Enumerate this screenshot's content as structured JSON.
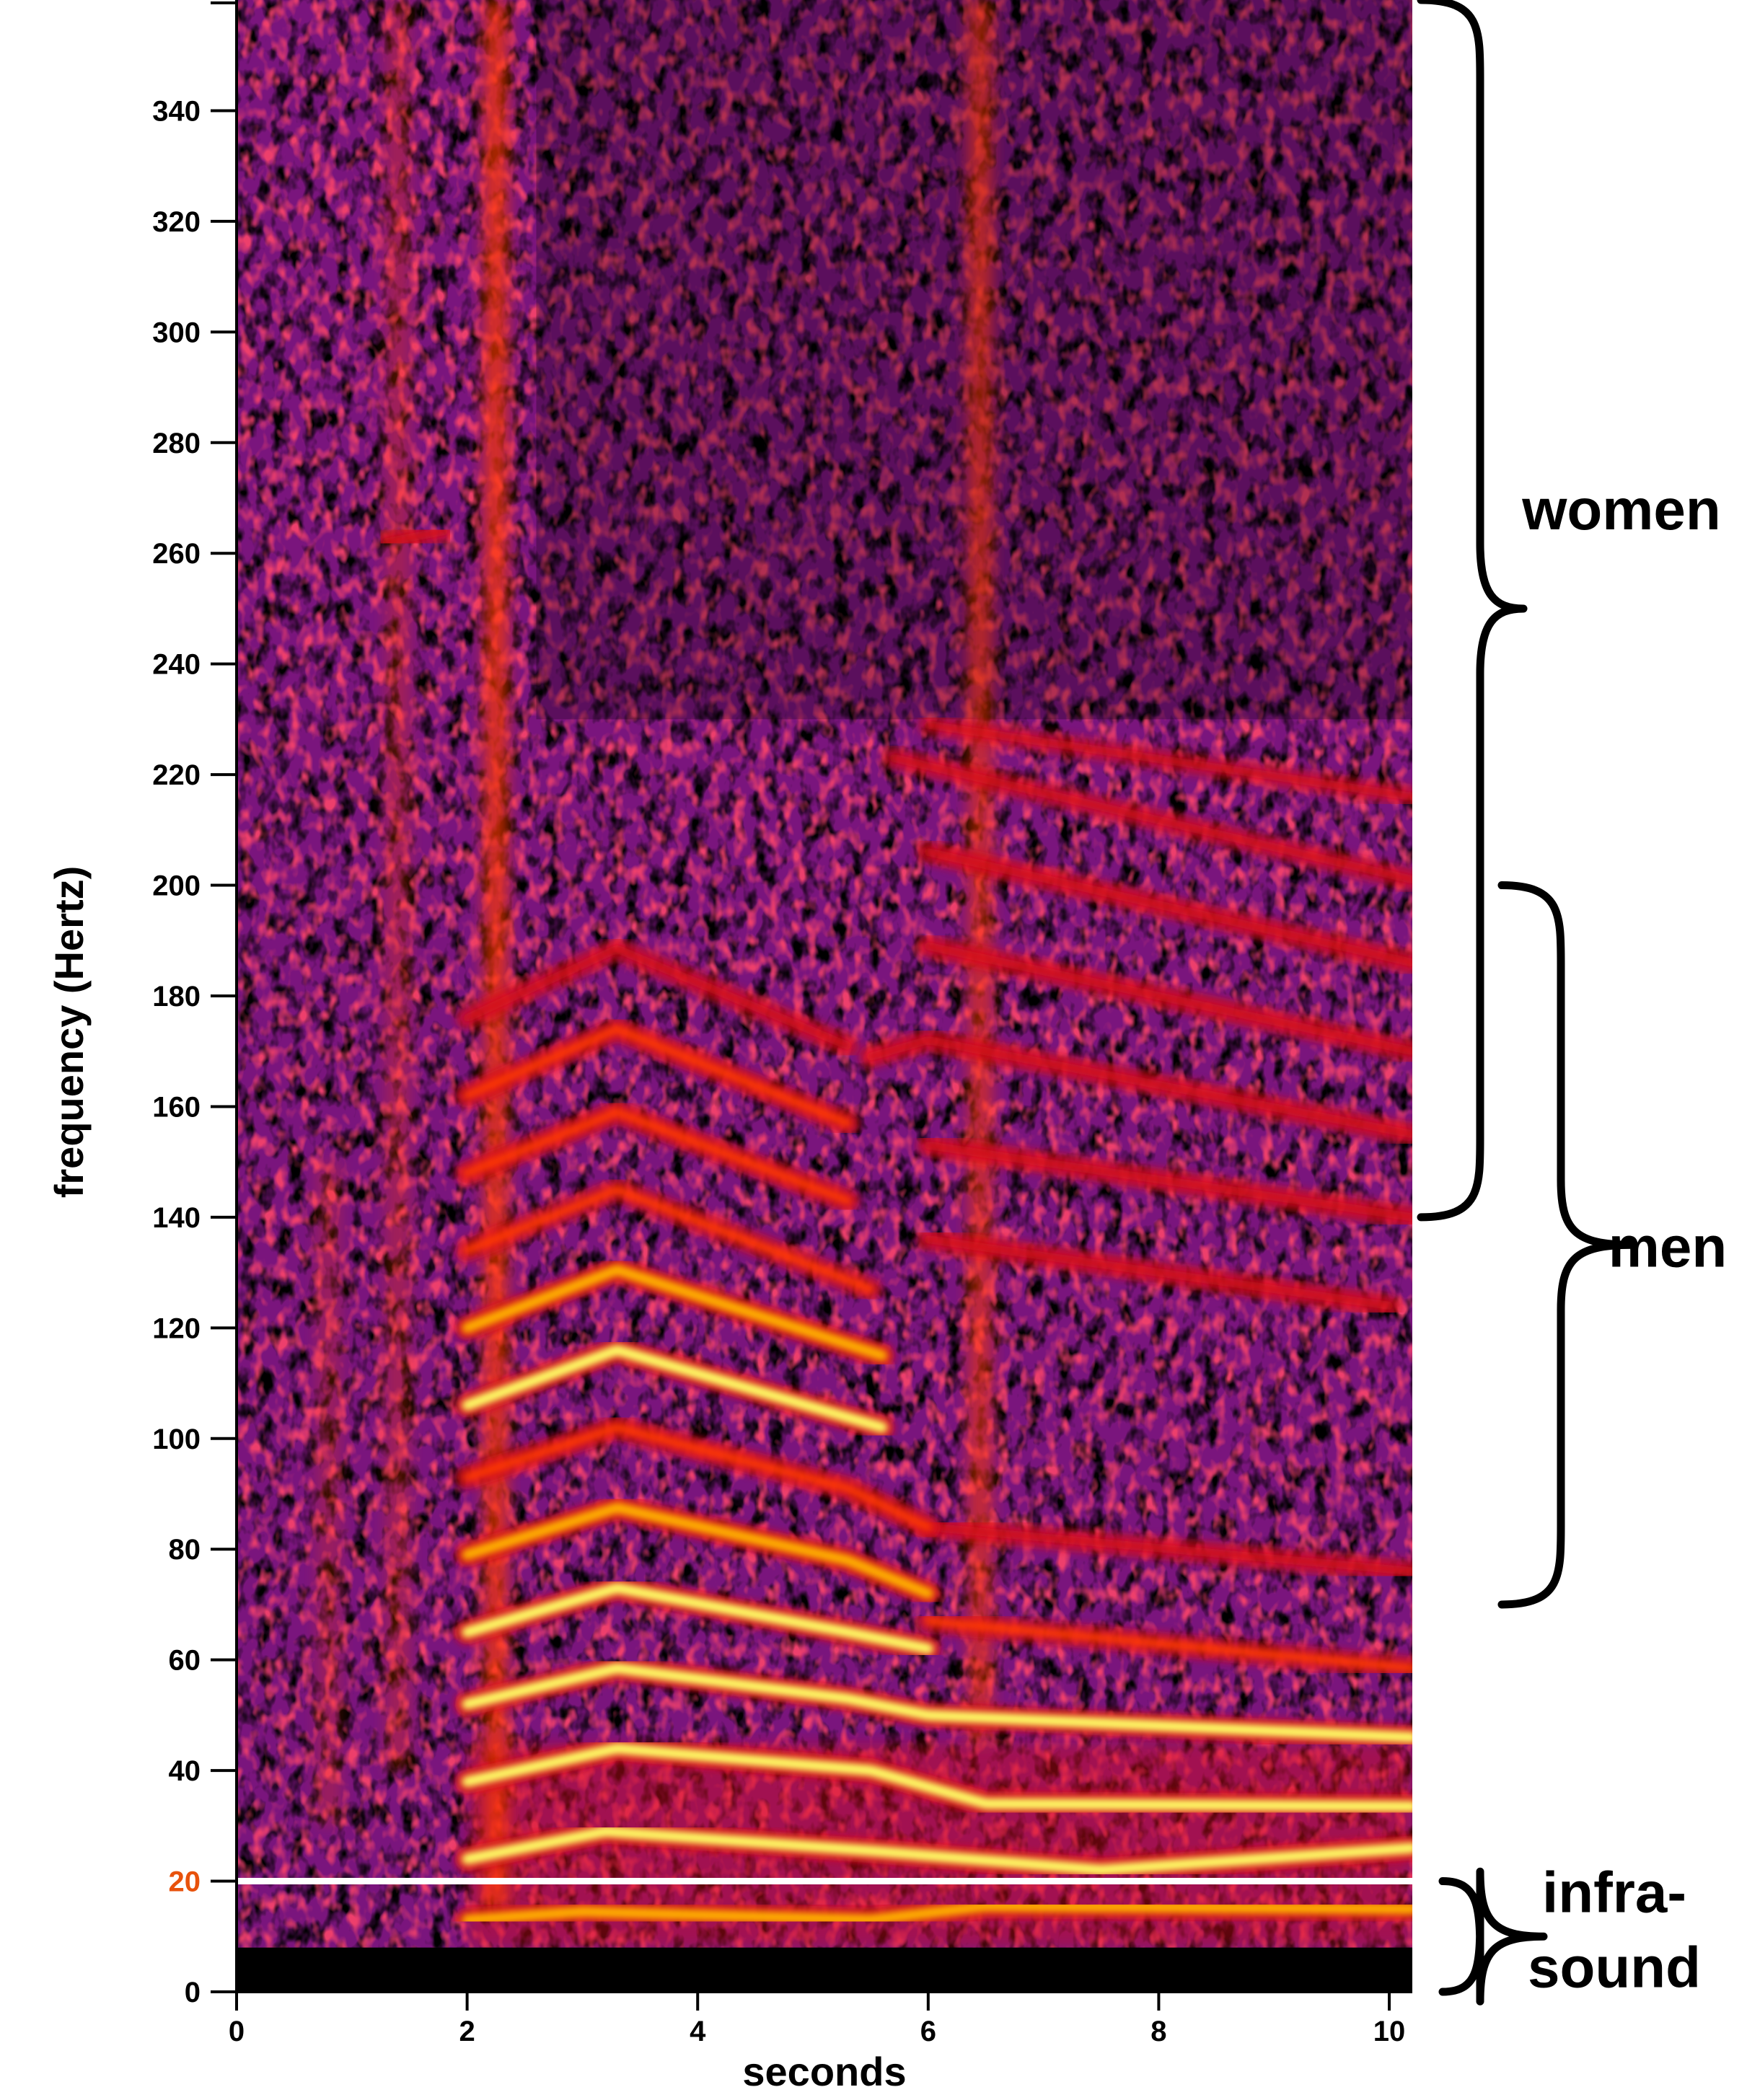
{
  "chart_data": {
    "type": "heatmap",
    "xlabel": "seconds",
    "ylabel": "frequency (Hertz)",
    "xlim": [
      0,
      10.2
    ],
    "ylim": [
      0,
      360
    ],
    "x_ticks": [
      0,
      2,
      4,
      6,
      8,
      10
    ],
    "y_ticks": [
      0,
      20,
      40,
      60,
      80,
      100,
      120,
      140,
      160,
      180,
      200,
      220,
      240,
      260,
      280,
      300,
      320,
      340
    ],
    "highlighted_tick": {
      "value": 20,
      "color": "#e8520c"
    },
    "reference_line": {
      "y": 20,
      "color": "#ffffff"
    },
    "colormap": [
      "#000000",
      "#3a0a4a",
      "#7a157d",
      "#d4101e",
      "#ff3b00",
      "#ffb000",
      "#ffff66"
    ],
    "range_annotations": [
      {
        "label": "women",
        "from": 140,
        "to": 360
      },
      {
        "label": "men",
        "from": 70,
        "to": 200
      },
      {
        "label": "infra-\nsound",
        "from": 0,
        "to": 20,
        "lines": [
          "infra-",
          "sound"
        ]
      }
    ],
    "harmonic_tracks": [
      {
        "points": [
          [
            2.0,
            13
          ],
          [
            3.0,
            14.5
          ],
          [
            5.5,
            13
          ],
          [
            6.5,
            15.5
          ],
          [
            10.2,
            15
          ]
        ],
        "intensity": 0.75
      },
      {
        "points": [
          [
            2.0,
            24
          ],
          [
            3.2,
            29
          ],
          [
            5.5,
            25.5
          ],
          [
            7.5,
            22
          ],
          [
            10.2,
            26
          ]
        ],
        "intensity": 1.0
      },
      {
        "points": [
          [
            2.0,
            38
          ],
          [
            3.3,
            44
          ],
          [
            5.5,
            40
          ],
          [
            6.5,
            34
          ],
          [
            10.2,
            33.5
          ]
        ],
        "intensity": 1.0
      },
      {
        "points": [
          [
            2.0,
            52
          ],
          [
            3.3,
            58.5
          ],
          [
            5.3,
            53
          ],
          [
            6.0,
            50
          ],
          [
            10.2,
            46
          ]
        ],
        "intensity": 0.95
      },
      {
        "points": [
          [
            2.0,
            65
          ],
          [
            3.3,
            73
          ],
          [
            5.3,
            65
          ],
          [
            6.0,
            62
          ]
        ],
        "intensity": 0.9
      },
      {
        "points": [
          [
            6.0,
            67
          ],
          [
            10.2,
            58.5
          ]
        ],
        "intensity": 0.6
      },
      {
        "points": [
          [
            2.0,
            79
          ],
          [
            3.3,
            87.5
          ],
          [
            5.3,
            78
          ],
          [
            6.0,
            72
          ]
        ],
        "intensity": 0.85
      },
      {
        "points": [
          [
            6.0,
            84
          ],
          [
            10.2,
            76
          ]
        ],
        "intensity": 0.5
      },
      {
        "points": [
          [
            2.0,
            93
          ],
          [
            3.3,
            102
          ],
          [
            5.3,
            91
          ],
          [
            6.0,
            84
          ]
        ],
        "intensity": 0.7
      },
      {
        "points": [
          [
            2.0,
            106
          ],
          [
            3.3,
            116
          ],
          [
            5.6,
            102
          ]
        ],
        "intensity": 0.9
      },
      {
        "points": [
          [
            2.0,
            120
          ],
          [
            3.3,
            130.5
          ],
          [
            5.6,
            115
          ]
        ],
        "intensity": 0.85
      },
      {
        "points": [
          [
            6.0,
            136
          ],
          [
            10.0,
            124
          ]
        ],
        "intensity": 0.55
      },
      {
        "points": [
          [
            2.0,
            134
          ],
          [
            3.3,
            145
          ],
          [
            5.5,
            127
          ]
        ],
        "intensity": 0.6
      },
      {
        "points": [
          [
            2.0,
            148
          ],
          [
            3.3,
            159
          ],
          [
            5.3,
            143
          ]
        ],
        "intensity": 0.7
      },
      {
        "points": [
          [
            6.0,
            153
          ],
          [
            10.2,
            140
          ]
        ],
        "intensity": 0.55
      },
      {
        "points": [
          [
            2.0,
            162
          ],
          [
            3.3,
            174
          ],
          [
            5.3,
            157
          ]
        ],
        "intensity": 0.7
      },
      {
        "points": [
          [
            5.5,
            169
          ],
          [
            6.0,
            172
          ],
          [
            10.2,
            155
          ]
        ],
        "intensity": 0.55
      },
      {
        "points": [
          [
            2.0,
            176
          ],
          [
            3.3,
            188.5
          ],
          [
            5.3,
            171
          ]
        ],
        "intensity": 0.5
      },
      {
        "points": [
          [
            6.0,
            189
          ],
          [
            10.2,
            170
          ]
        ],
        "intensity": 0.55
      },
      {
        "points": [
          [
            6.0,
            206
          ],
          [
            10.2,
            186
          ]
        ],
        "intensity": 0.55
      },
      {
        "points": [
          [
            5.7,
            223
          ],
          [
            10.2,
            201
          ]
        ],
        "intensity": 0.45
      },
      {
        "points": [
          [
            6.0,
            229
          ],
          [
            10.2,
            216
          ]
        ],
        "intensity": 0.35
      },
      {
        "points": [
          [
            1.3,
            262
          ],
          [
            1.8,
            264
          ]
        ],
        "intensity": 0.45
      }
    ],
    "vertical_bands": [
      {
        "x": 2.25,
        "ymin": 15,
        "ymax": 360,
        "intensity": 0.7
      },
      {
        "x": 6.45,
        "ymin": 45,
        "ymax": 360,
        "intensity": 0.55
      },
      {
        "x": 1.4,
        "ymin": 40,
        "ymax": 360,
        "intensity": 0.3
      },
      {
        "x": 0.8,
        "ymin": 30,
        "ymax": 150,
        "intensity": 0.25
      }
    ]
  }
}
